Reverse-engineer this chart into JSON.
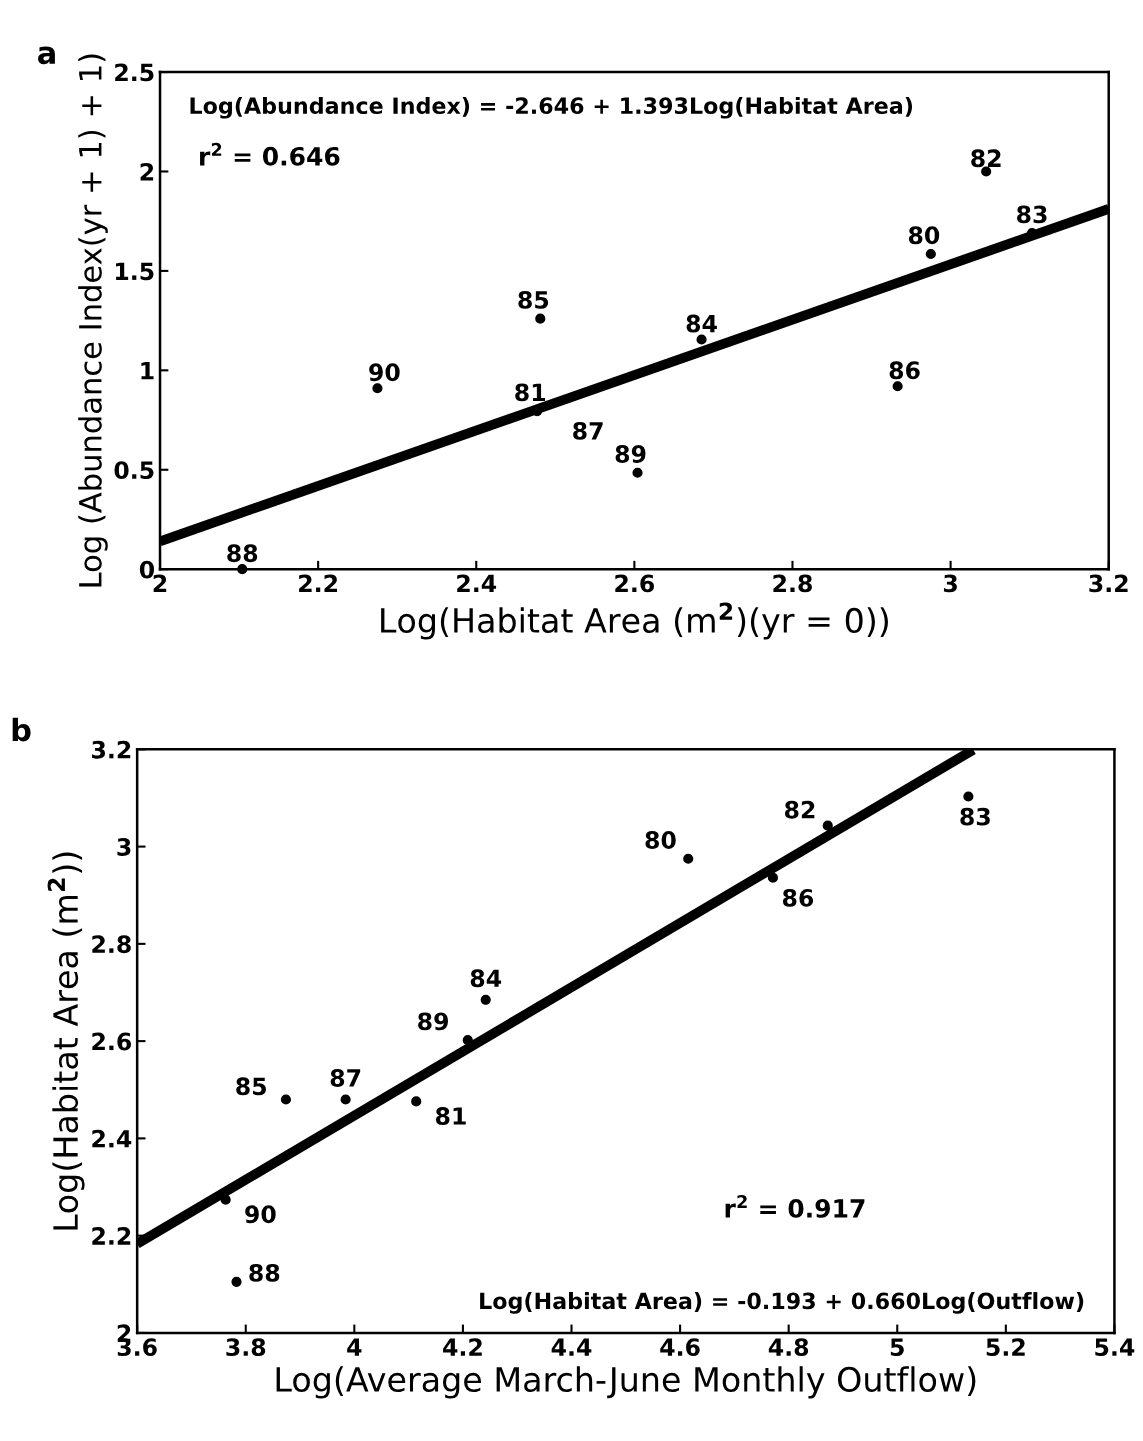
{
  "chart_data": [
    {
      "type": "scatter",
      "title": "a",
      "xlabel": "Log(Habitat Area (m$^{2}$)(yr = 0))",
      "ylabel": "Log (Abundance Index(yr + 1) + 1)",
      "xlim": [
        2,
        3.2
      ],
      "xticks": [
        2,
        2.2,
        2.4,
        2.6,
        2.8,
        3,
        3.2
      ],
      "ylim": [
        0,
        2.5
      ],
      "yticks": [
        0,
        0.5,
        1,
        1.5,
        2,
        2.5
      ],
      "grid": false,
      "series": [
        {
          "marker": "circle",
          "color": "#000000",
          "x": [
            2.104,
            2.275,
            2.481,
            2.477,
            2.48,
            2.604,
            2.685,
            2.933,
            2.975,
            3.045,
            3.103
          ],
          "values": [
            0.0,
            0.91,
            1.26,
            0.795,
            null,
            0.485,
            1.155,
            0.92,
            1.585,
            2.0,
            1.69
          ]
        },
        {
          "type": "line",
          "color": "#000000",
          "x": [
            2,
            3.2
          ],
          "values": [
            0.14,
            1.812
          ]
        }
      ],
      "annotations": [
        "Log(Abundance Index) = -2.646 + 1.393Log(Habitat Area)",
        "r$^{2}$ = 0.646",
        {
          "text": "88",
          "x": 2.104,
          "y": 0.0
        },
        {
          "text": "90",
          "x": 2.275,
          "y": 0.91
        },
        {
          "text": "85",
          "x": 2.481,
          "y": 1.26
        },
        {
          "text": "81",
          "x": 2.477,
          "y": 0.795
        },
        {
          "text": "87",
          "x": 2.48,
          "y": 0.79
        },
        {
          "text": "89",
          "x": 2.604,
          "y": 0.485
        },
        {
          "text": "84",
          "x": 2.685,
          "y": 1.155
        },
        {
          "text": "86",
          "x": 2.933,
          "y": 0.92
        },
        {
          "text": "80",
          "x": 2.975,
          "y": 1.585
        },
        {
          "text": "82",
          "x": 3.045,
          "y": 2.0
        },
        {
          "text": "83",
          "x": 3.103,
          "y": 1.69
        }
      ]
    },
    {
      "type": "scatter",
      "title": "b",
      "xlabel": "Log(Average March-June Monthly Outflow)",
      "ylabel": "Log(Habitat Area (m$^{2}$))",
      "xlim": [
        3.6,
        5.4
      ],
      "xticks": [
        3.6,
        3.8,
        4,
        4.2,
        4.4,
        4.6,
        4.8,
        5,
        5.2,
        5.4
      ],
      "ylim": [
        2,
        3.2
      ],
      "yticks": [
        2,
        2.2,
        2.4,
        2.6,
        2.8,
        3,
        3.2
      ],
      "grid": false,
      "series": [
        {
          "marker": "circle",
          "color": "#000000",
          "x": [
            3.763,
            3.783,
            3.874,
            3.984,
            4.114,
            4.209,
            4.242,
            4.615,
            4.771,
            4.872,
            5.131
          ],
          "values": [
            2.274,
            2.105,
            2.48,
            2.48,
            2.476,
            2.602,
            2.685,
            2.975,
            2.936,
            3.043,
            3.103
          ]
        },
        {
          "type": "line",
          "color": "#000000",
          "x": [
            3.6,
            5.14
          ],
          "values": [
            2.183,
            3.199
          ]
        }
      ],
      "annotations": [
        "r$^{2}$ = 0.917",
        "Log(Habitat Area) = -0.193 + 0.660Log(Outflow)",
        {
          "text": "90",
          "x": 3.763,
          "y": 2.274
        },
        {
          "text": "88",
          "x": 3.783,
          "y": 2.105
        },
        {
          "text": "85",
          "x": 3.874,
          "y": 2.48
        },
        {
          "text": "87",
          "x": 3.984,
          "y": 2.48
        },
        {
          "text": "81",
          "x": 4.114,
          "y": 2.476
        },
        {
          "text": "89",
          "x": 4.209,
          "y": 2.602
        },
        {
          "text": "84",
          "x": 4.242,
          "y": 2.685
        },
        {
          "text": "80",
          "x": 4.615,
          "y": 2.975
        },
        {
          "text": "86",
          "x": 4.771,
          "y": 2.936
        },
        {
          "text": "82",
          "x": 4.872,
          "y": 3.043
        },
        {
          "text": "83",
          "x": 5.131,
          "y": 3.103
        }
      ]
    }
  ]
}
